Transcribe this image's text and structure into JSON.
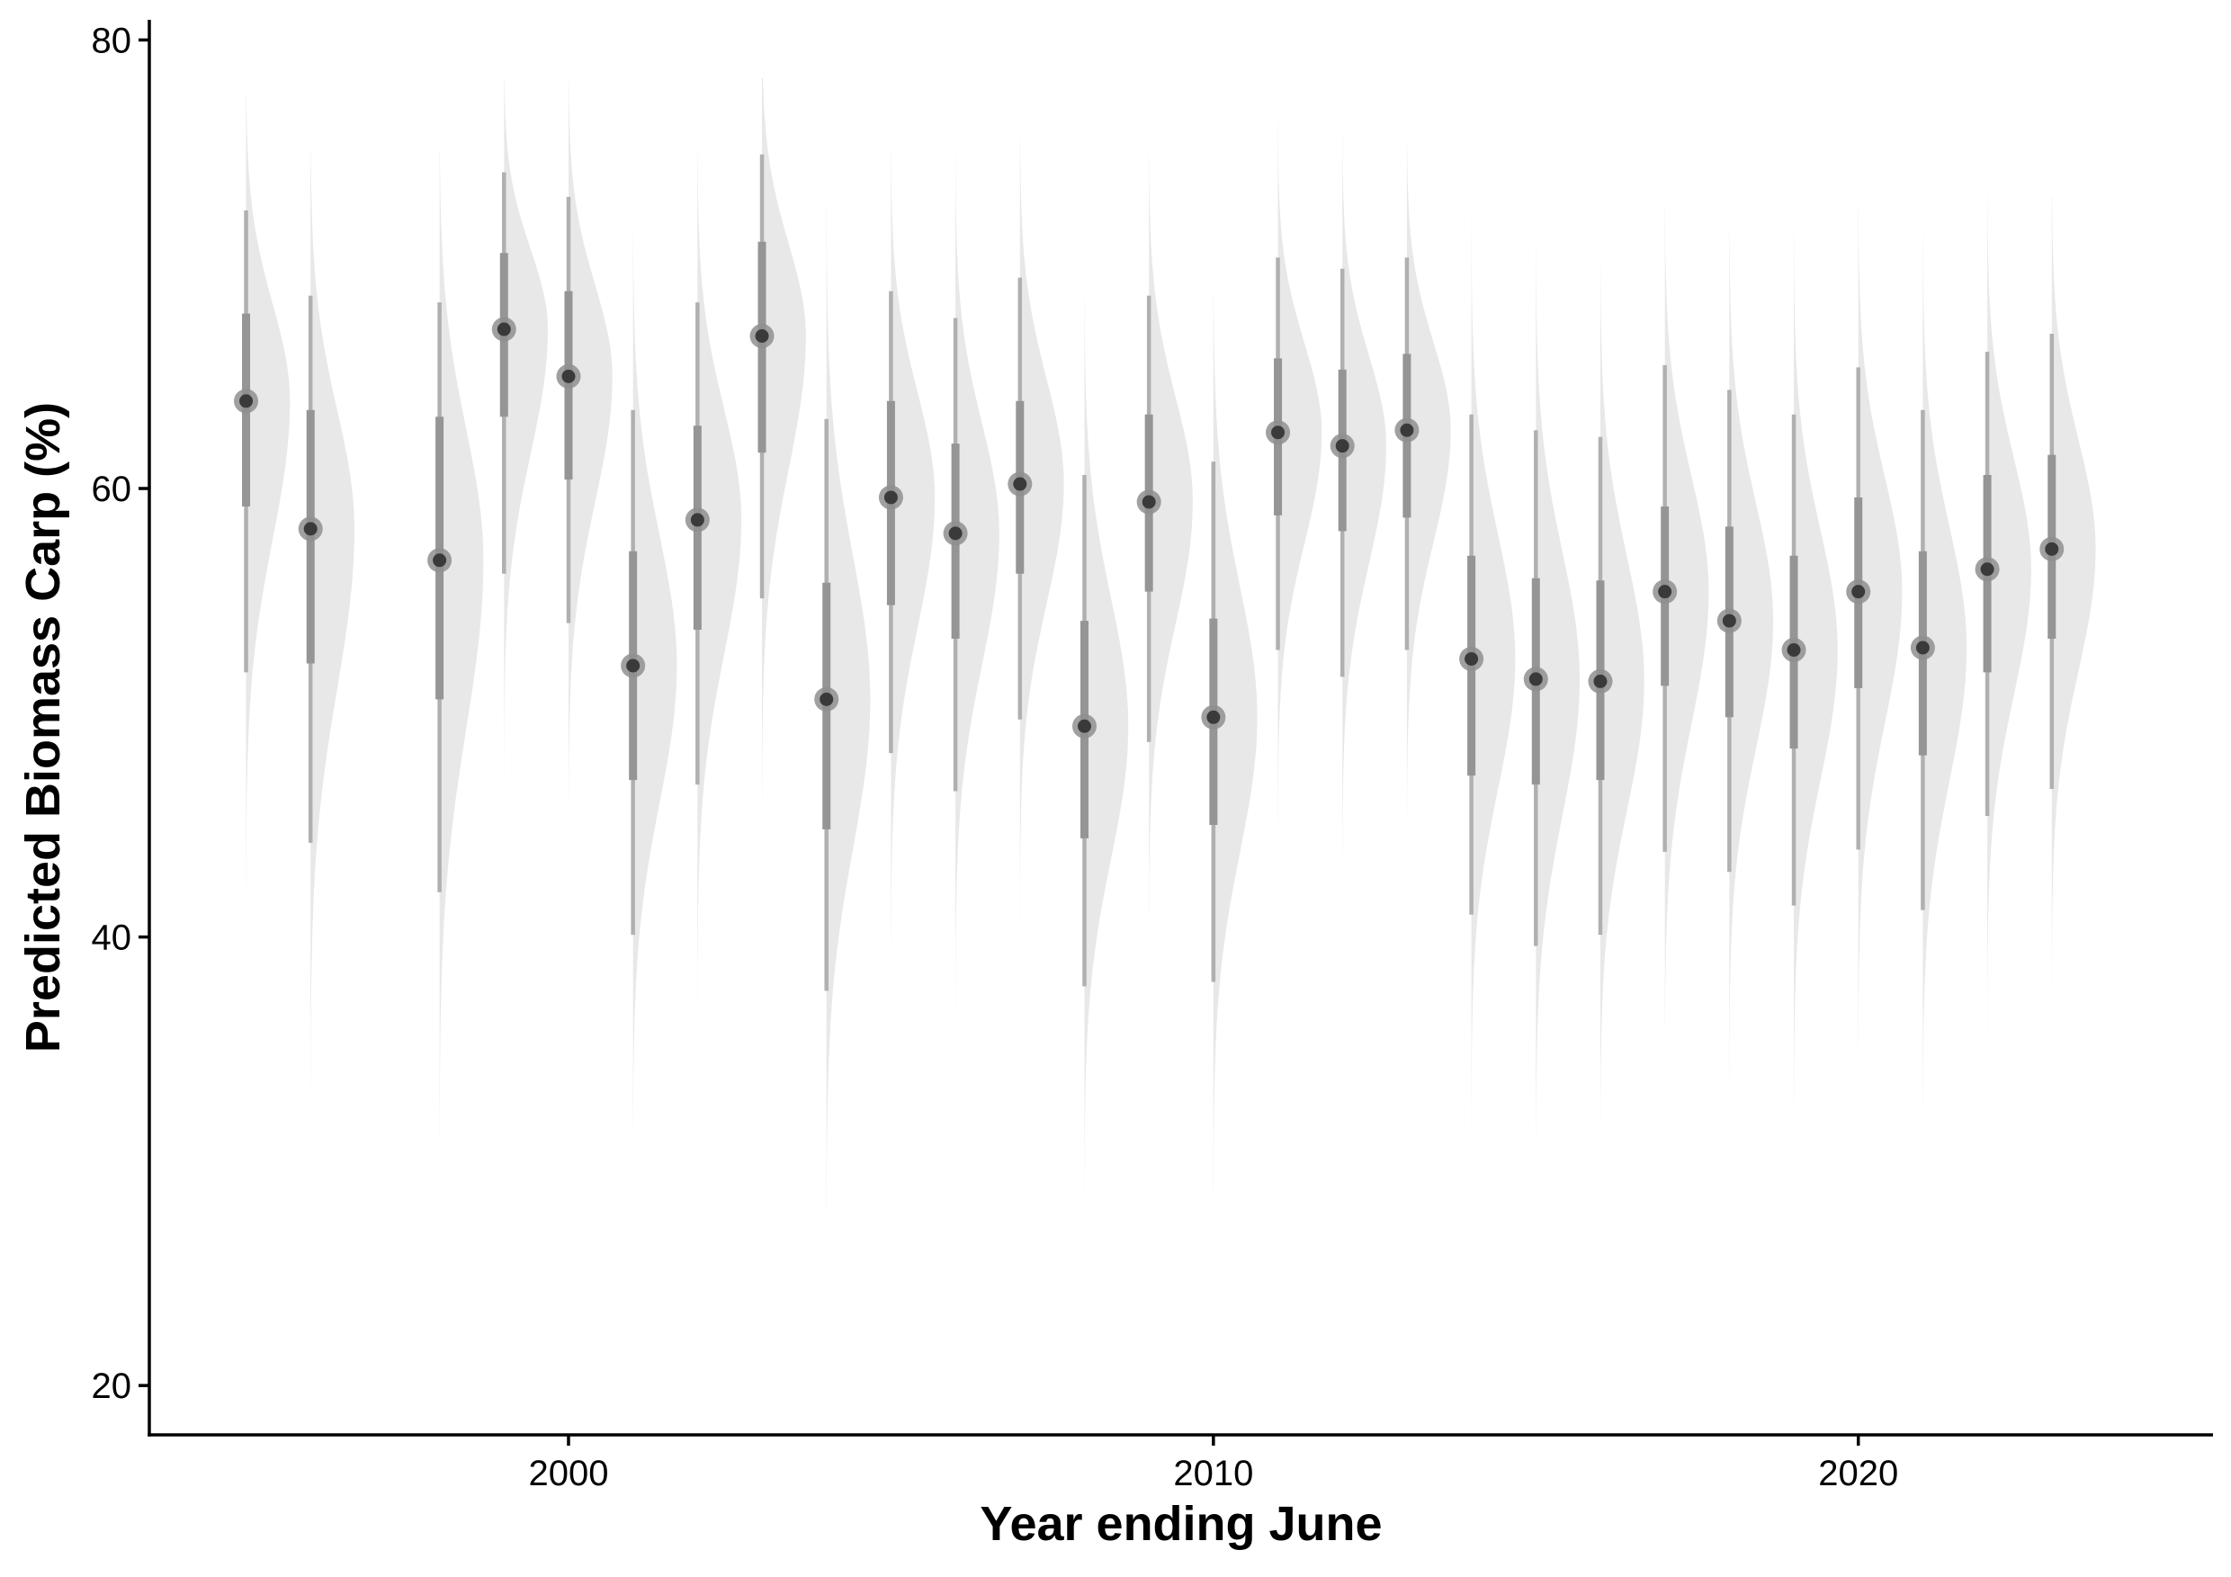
{
  "chart_data": {
    "type": "scatter",
    "subtype": "half-eye (half-violin with point interval)",
    "xlabel": "Year ending June",
    "ylabel": "Predicted Biomass Carp (%)",
    "x_ticks": [
      "2000",
      "2010",
      "2020"
    ],
    "y_ticks": [
      "20",
      "40",
      "60",
      "80"
    ],
    "xlim": [
      1993.5,
      2025.5
    ],
    "ylim": [
      17.8,
      80.9
    ],
    "grid": false,
    "legend": "none",
    "colors": {
      "density_fill": "#e8e8e8",
      "interval": "#b0b0b0",
      "interval_inner": "#959595",
      "point_outer": "#8f8f8f",
      "point_inner": "#3a3a3a",
      "axis": "#000000"
    },
    "points": [
      {
        "year": 1995,
        "median": 63.9,
        "q25": 59.2,
        "q75": 67.8,
        "lo95": 51.8,
        "hi95": 72.4,
        "tail_lo": 40.0,
        "tail_hi": 77.5
      },
      {
        "year": 1996,
        "median": 58.2,
        "q25": 52.2,
        "q75": 63.5,
        "lo95": 44.2,
        "hi95": 68.6,
        "tail_lo": 31.5,
        "tail_hi": 75.0
      },
      {
        "year": 1998,
        "median": 56.8,
        "q25": 50.6,
        "q75": 63.2,
        "lo95": 42.0,
        "hi95": 68.3,
        "tail_lo": 31.0,
        "tail_hi": 75.0
      },
      {
        "year": 1999,
        "median": 67.1,
        "q25": 63.2,
        "q75": 70.5,
        "lo95": 56.2,
        "hi95": 74.1,
        "tail_lo": 42.0,
        "tail_hi": 78.3
      },
      {
        "year": 2000,
        "median": 65.0,
        "q25": 60.4,
        "q75": 68.8,
        "lo95": 54.0,
        "hi95": 73.0,
        "tail_lo": 43.5,
        "tail_hi": 78.3
      },
      {
        "year": 2001,
        "median": 52.1,
        "q25": 47.0,
        "q75": 57.2,
        "lo95": 40.1,
        "hi95": 63.5,
        "tail_lo": 23.5,
        "tail_hi": 71.5
      },
      {
        "year": 2002,
        "median": 58.6,
        "q25": 53.7,
        "q75": 62.8,
        "lo95": 46.8,
        "hi95": 68.3,
        "tail_lo": 32.0,
        "tail_hi": 75.0
      },
      {
        "year": 2003,
        "median": 66.8,
        "q25": 61.6,
        "q75": 71.0,
        "lo95": 55.1,
        "hi95": 74.9,
        "tail_lo": 42.5,
        "tail_hi": 78.3
      },
      {
        "year": 2004,
        "median": 50.6,
        "q25": 44.8,
        "q75": 55.8,
        "lo95": 37.6,
        "hi95": 63.1,
        "tail_lo": 20.5,
        "tail_hi": 73.5
      },
      {
        "year": 2005,
        "median": 59.6,
        "q25": 54.8,
        "q75": 63.9,
        "lo95": 48.2,
        "hi95": 68.8,
        "tail_lo": 30.0,
        "tail_hi": 75.0
      },
      {
        "year": 2006,
        "median": 58.0,
        "q25": 53.3,
        "q75": 62.0,
        "lo95": 46.5,
        "hi95": 67.6,
        "tail_lo": 33.0,
        "tail_hi": 75.0
      },
      {
        "year": 2007,
        "median": 60.2,
        "q25": 56.2,
        "q75": 63.9,
        "lo95": 49.7,
        "hi95": 69.4,
        "tail_lo": 36.0,
        "tail_hi": 75.5
      },
      {
        "year": 2008,
        "median": 49.4,
        "q25": 44.4,
        "q75": 54.1,
        "lo95": 37.8,
        "hi95": 60.6,
        "tail_lo": 22.5,
        "tail_hi": 68.5
      },
      {
        "year": 2009,
        "median": 59.4,
        "q25": 55.4,
        "q75": 63.3,
        "lo95": 48.7,
        "hi95": 68.6,
        "tail_lo": 34.5,
        "tail_hi": 75.5
      },
      {
        "year": 2010,
        "median": 49.8,
        "q25": 45.0,
        "q75": 54.2,
        "lo95": 38.0,
        "hi95": 61.2,
        "tail_lo": 28.5,
        "tail_hi": 68.5
      },
      {
        "year": 2011,
        "median": 62.5,
        "q25": 58.8,
        "q75": 65.8,
        "lo95": 52.8,
        "hi95": 70.3,
        "tail_lo": 41.0,
        "tail_hi": 76.5
      },
      {
        "year": 2012,
        "median": 61.9,
        "q25": 58.1,
        "q75": 65.3,
        "lo95": 51.6,
        "hi95": 69.8,
        "tail_lo": 42.0,
        "tail_hi": 76.0
      },
      {
        "year": 2013,
        "median": 62.6,
        "q25": 58.7,
        "q75": 66.0,
        "lo95": 52.8,
        "hi95": 70.3,
        "tail_lo": 41.0,
        "tail_hi": 75.5
      },
      {
        "year": 2014,
        "median": 52.4,
        "q25": 47.2,
        "q75": 57.0,
        "lo95": 41.0,
        "hi95": 63.3,
        "tail_lo": 27.5,
        "tail_hi": 72.5
      },
      {
        "year": 2015,
        "median": 51.5,
        "q25": 46.8,
        "q75": 56.0,
        "lo95": 39.6,
        "hi95": 62.6,
        "tail_lo": 28.0,
        "tail_hi": 71.5
      },
      {
        "year": 2016,
        "median": 51.4,
        "q25": 47.0,
        "q75": 55.9,
        "lo95": 40.1,
        "hi95": 62.3,
        "tail_lo": 28.5,
        "tail_hi": 71.5
      },
      {
        "year": 2017,
        "median": 55.4,
        "q25": 51.2,
        "q75": 59.2,
        "lo95": 43.8,
        "hi95": 65.5,
        "tail_lo": 36.0,
        "tail_hi": 72.5
      },
      {
        "year": 2018,
        "median": 54.1,
        "q25": 49.8,
        "q75": 58.3,
        "lo95": 42.9,
        "hi95": 64.4,
        "tail_lo": 32.0,
        "tail_hi": 71.5
      },
      {
        "year": 2019,
        "median": 52.8,
        "q25": 48.4,
        "q75": 57.0,
        "lo95": 41.4,
        "hi95": 63.3,
        "tail_lo": 32.5,
        "tail_hi": 71.5
      },
      {
        "year": 2020,
        "median": 55.4,
        "q25": 51.1,
        "q75": 59.6,
        "lo95": 43.9,
        "hi95": 65.4,
        "tail_lo": 28.0,
        "tail_hi": 72.5
      },
      {
        "year": 2021,
        "median": 52.9,
        "q25": 48.1,
        "q75": 57.2,
        "lo95": 41.2,
        "hi95": 63.5,
        "tail_lo": 30.0,
        "tail_hi": 72.0
      },
      {
        "year": 2022,
        "median": 56.4,
        "q25": 51.8,
        "q75": 60.6,
        "lo95": 45.4,
        "hi95": 66.1,
        "tail_lo": 35.0,
        "tail_hi": 73.0
      },
      {
        "year": 2023,
        "median": 57.3,
        "q25": 53.3,
        "q75": 61.5,
        "lo95": 46.6,
        "hi95": 66.9,
        "tail_lo": 37.5,
        "tail_hi": 73.0
      }
    ]
  }
}
